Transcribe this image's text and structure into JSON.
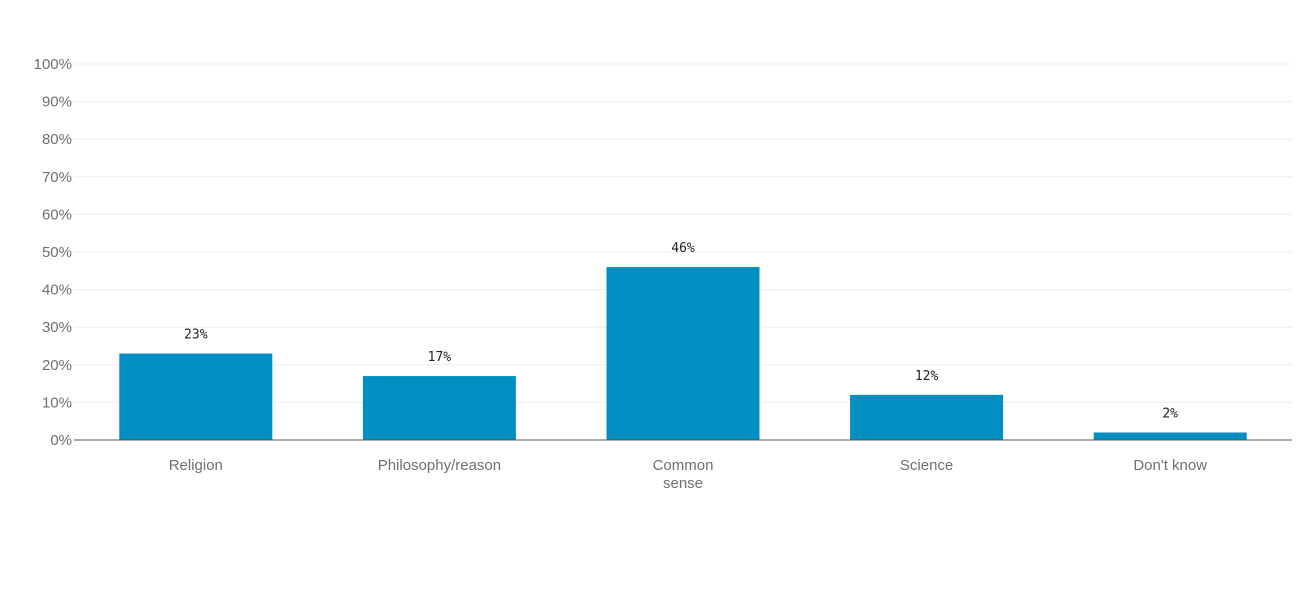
{
  "chart_data": {
    "type": "bar",
    "categories": [
      [
        "Religion"
      ],
      [
        "Philosophy/reason"
      ],
      [
        "Common",
        "sense"
      ],
      [
        "Science"
      ],
      [
        "Don't know"
      ]
    ],
    "values": [
      23,
      17,
      46,
      12,
      2
    ],
    "value_labels": [
      "23%",
      "17%",
      "46%",
      "12%",
      "2%"
    ],
    "ylim": [
      0,
      100
    ],
    "yticks": [
      "0%",
      "10%",
      "20%",
      "30%",
      "40%",
      "50%",
      "60%",
      "70%",
      "80%",
      "90%",
      "100%"
    ],
    "grid": true,
    "colors": {
      "bar": "#008fc0",
      "grid": "#ececec",
      "axis": "#555555"
    }
  }
}
